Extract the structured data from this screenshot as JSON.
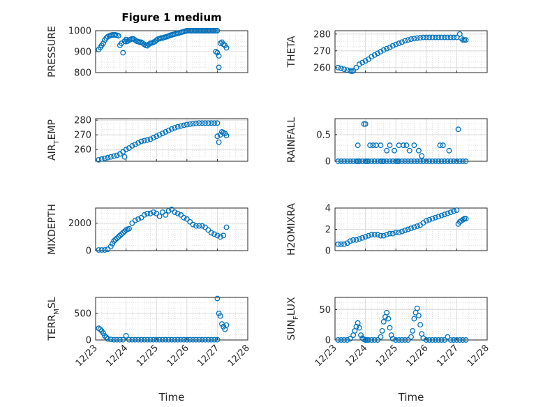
{
  "figure": {
    "title": "Figure 1 medium",
    "xlabel": "Time",
    "marker_color": "#0072BD",
    "grid": true,
    "x_ticks": [
      "12/23",
      "12/24",
      "12/25",
      "12/26",
      "12/27",
      "12/28"
    ]
  },
  "chart_data": [
    {
      "type": "scatter",
      "ylabel": "PRESSURE",
      "ylabel_parts": [
        "PRESSURE"
      ],
      "xlim": [
        "12/23",
        "12/28"
      ],
      "ylim": [
        800,
        1000
      ],
      "yticks": [
        800,
        900,
        1000
      ],
      "x": [
        0.1,
        0.15,
        0.2,
        0.25,
        0.3,
        0.35,
        0.4,
        0.45,
        0.5,
        0.55,
        0.6,
        0.65,
        0.7,
        0.75,
        0.8,
        0.85,
        0.9,
        0.95,
        1.0,
        1.0,
        1.05,
        1.1,
        1.15,
        1.2,
        1.25,
        1.3,
        1.35,
        1.4,
        1.45,
        1.5,
        1.55,
        1.6,
        1.65,
        1.7,
        1.75,
        1.8,
        1.85,
        1.9,
        1.95,
        2.0,
        2.05,
        2.1,
        2.15,
        2.2,
        2.25,
        2.3,
        2.35,
        2.4,
        2.45,
        2.5,
        2.55,
        2.6,
        2.65,
        2.7,
        2.75,
        2.8,
        2.85,
        2.9,
        2.95,
        3.0,
        3.05,
        3.1,
        3.15,
        3.2,
        3.25,
        3.3,
        3.35,
        3.4,
        3.45,
        3.5,
        3.55,
        3.6,
        3.65,
        3.7,
        3.75,
        3.8,
        3.85,
        3.9,
        3.95,
        4.0,
        3.95,
        4.0,
        4.05,
        4.05,
        4.1,
        4.15,
        4.2,
        4.25,
        4.3
      ],
      "y": [
        910,
        920,
        930,
        940,
        955,
        965,
        972,
        975,
        978,
        980,
        980,
        980,
        978,
        976,
        930,
        940,
        895,
        950,
        958,
        948,
        950,
        955,
        958,
        962,
        960,
        955,
        950,
        948,
        945,
        945,
        940,
        935,
        930,
        928,
        935,
        940,
        942,
        945,
        948,
        955,
        960,
        962,
        965,
        965,
        968,
        970,
        972,
        975,
        978,
        980,
        982,
        984,
        986,
        988,
        990,
        992,
        994,
        996,
        998,
        1000,
        1000,
        1000,
        1000,
        1000,
        1000,
        1000,
        1000,
        1000,
        1000,
        1000,
        1000,
        1000,
        1000,
        1000,
        1000,
        1000,
        1000,
        1000,
        1000,
        1000,
        900,
        895,
        880,
        825,
        940,
        945,
        935,
        930,
        918
      ]
    },
    {
      "type": "scatter",
      "ylabel": "THETA",
      "ylabel_parts": [
        "THETA"
      ],
      "xlim": [
        "12/23",
        "12/28"
      ],
      "ylim": [
        257,
        282
      ],
      "yticks": [
        260,
        270,
        280
      ],
      "x": [
        0.1,
        0.2,
        0.3,
        0.4,
        0.5,
        0.55,
        0.6,
        0.7,
        0.8,
        0.9,
        1.0,
        1.1,
        1.2,
        1.3,
        1.4,
        1.5,
        1.6,
        1.7,
        1.8,
        1.9,
        2.0,
        2.1,
        2.2,
        2.3,
        2.4,
        2.5,
        2.6,
        2.7,
        2.8,
        2.9,
        3.0,
        3.1,
        3.2,
        3.3,
        3.4,
        3.5,
        3.6,
        3.7,
        3.8,
        3.9,
        4.0,
        4.1,
        4.15,
        4.2,
        4.25,
        4.3
      ],
      "y": [
        260,
        259.5,
        259,
        258.5,
        258,
        257.8,
        258,
        260,
        262,
        263,
        264,
        265,
        266.5,
        267.5,
        268.5,
        269.5,
        270.5,
        271.3,
        272,
        273,
        273.8,
        274.5,
        275.2,
        276,
        276.5,
        277,
        277.3,
        277.6,
        277.8,
        278,
        278,
        278,
        278,
        278,
        278,
        278,
        278,
        278,
        278,
        278,
        278,
        280,
        277.5,
        276.5,
        276.5,
        276.5
      ]
    },
    {
      "type": "scatter",
      "ylabel": "AIR_TEMP",
      "ylabel_parts": [
        "AIR",
        "T",
        "EMP"
      ],
      "xlim": [
        "12/23",
        "12/28"
      ],
      "ylim": [
        252,
        281
      ],
      "yticks": [
        260,
        270,
        280
      ],
      "x": [
        0.1,
        0.2,
        0.3,
        0.4,
        0.5,
        0.6,
        0.7,
        0.8,
        0.9,
        0.95,
        1.0,
        1.1,
        1.2,
        1.3,
        1.4,
        1.5,
        1.6,
        1.7,
        1.8,
        1.9,
        2.0,
        2.1,
        2.2,
        2.3,
        2.4,
        2.5,
        2.6,
        2.7,
        2.8,
        2.9,
        3.0,
        3.1,
        3.2,
        3.3,
        3.4,
        3.5,
        3.6,
        3.7,
        3.8,
        3.9,
        4.0,
        4.0,
        4.05,
        4.1,
        4.15,
        4.2,
        4.25,
        4.3
      ],
      "y": [
        253,
        253.5,
        254,
        254.5,
        255,
        255.5,
        256,
        257,
        258.5,
        255,
        260,
        261,
        262.5,
        263.5,
        264.5,
        265.5,
        266,
        266.5,
        267,
        268,
        269,
        270,
        271,
        272,
        273,
        274,
        274.8,
        275.5,
        276,
        276.5,
        277,
        277.3,
        277.6,
        277.8,
        278,
        278,
        278,
        278,
        278,
        278,
        278,
        269,
        265,
        270,
        272,
        271.5,
        271,
        269.5
      ]
    },
    {
      "type": "scatter",
      "ylabel": "RAINFALL",
      "ylabel_parts": [
        "RAINFALL"
      ],
      "xlim": [
        "12/23",
        "12/28"
      ],
      "ylim": [
        0,
        0.8
      ],
      "yticks": [
        0,
        0.5
      ],
      "x": [
        0.1,
        0.2,
        0.3,
        0.4,
        0.5,
        0.6,
        0.7,
        0.75,
        0.8,
        0.9,
        1.0,
        1.05,
        1.1,
        1.2,
        1.3,
        1.4,
        1.5,
        1.55,
        1.6,
        1.7,
        1.8,
        1.9,
        2.0,
        2.05,
        2.1,
        2.2,
        2.3,
        2.4,
        2.5,
        2.6,
        2.7,
        2.8,
        2.9,
        3.0,
        3.1,
        3.2,
        3.3,
        3.4,
        3.5,
        3.6,
        3.7,
        3.8,
        3.9,
        4.0,
        4.1,
        4.2,
        4.3,
        0.75,
        0.95,
        1.0,
        1.15,
        1.25,
        1.35,
        1.5,
        1.7,
        1.8,
        1.95,
        2.1,
        2.25,
        2.35,
        2.45,
        2.6,
        2.75,
        2.85,
        3.45,
        3.55,
        3.75,
        4.05
      ],
      "y": [
        0,
        0,
        0,
        0,
        0,
        0,
        0,
        0,
        0,
        0,
        0,
        0,
        0,
        0,
        0,
        0,
        0,
        0,
        0,
        0,
        0,
        0,
        0,
        0,
        0,
        0,
        0,
        0,
        0,
        0,
        0,
        0,
        0,
        0,
        0,
        0,
        0,
        0,
        0,
        0,
        0,
        0,
        0,
        0,
        0,
        0,
        0,
        0.3,
        0.7,
        0.7,
        0.3,
        0.3,
        0.3,
        0.3,
        0.2,
        0.3,
        0.2,
        0.3,
        0.3,
        0.3,
        0.2,
        0.3,
        0.2,
        0.1,
        0.3,
        0.3,
        0.2,
        0.6
      ]
    },
    {
      "type": "scatter",
      "ylabel": "MIXDEPTH",
      "ylabel_parts": [
        "MIXDEPTH"
      ],
      "xlim": [
        "12/23",
        "12/28"
      ],
      "ylim": [
        0,
        3100
      ],
      "yticks": [
        0,
        2000
      ],
      "x": [
        0.1,
        0.2,
        0.3,
        0.4,
        0.5,
        0.55,
        0.6,
        0.65,
        0.7,
        0.75,
        0.8,
        0.85,
        0.9,
        0.95,
        1.0,
        1.05,
        1.1,
        1.2,
        1.3,
        1.4,
        1.5,
        1.6,
        1.7,
        1.8,
        1.9,
        2.0,
        2.1,
        2.2,
        2.3,
        2.4,
        2.5,
        2.6,
        2.7,
        2.8,
        2.9,
        3.0,
        3.1,
        3.2,
        3.3,
        3.4,
        3.5,
        3.6,
        3.7,
        3.8,
        3.9,
        4.0,
        4.1,
        4.2,
        4.3
      ],
      "y": [
        50,
        50,
        50,
        100,
        300,
        500,
        700,
        800,
        900,
        1000,
        1100,
        1200,
        1300,
        1400,
        1500,
        1550,
        1600,
        2000,
        2200,
        2300,
        2400,
        2600,
        2700,
        2700,
        2800,
        2700,
        2500,
        2800,
        2600,
        2900,
        3000,
        2800,
        2700,
        2600,
        2400,
        2300,
        2100,
        1900,
        1800,
        1800,
        1800,
        1700,
        1500,
        1300,
        1200,
        1100,
        1000,
        1100,
        1700
      ]
    },
    {
      "type": "scatter",
      "ylabel": "H2OMIXRA",
      "ylabel_parts": [
        "H2OMIXRA"
      ],
      "xlim": [
        "12/23",
        "12/28"
      ],
      "ylim": [
        0,
        4
      ],
      "yticks": [
        0,
        2,
        4
      ],
      "x": [
        0.1,
        0.2,
        0.3,
        0.4,
        0.5,
        0.6,
        0.7,
        0.8,
        0.9,
        1.0,
        1.1,
        1.2,
        1.3,
        1.4,
        1.5,
        1.6,
        1.7,
        1.8,
        1.9,
        2.0,
        2.1,
        2.2,
        2.3,
        2.4,
        2.5,
        2.6,
        2.7,
        2.8,
        2.9,
        3.0,
        3.1,
        3.2,
        3.3,
        3.4,
        3.5,
        3.6,
        3.7,
        3.8,
        3.9,
        4.0,
        4.05,
        4.1,
        4.15,
        4.2,
        4.25,
        4.3
      ],
      "y": [
        0.6,
        0.6,
        0.6,
        0.7,
        0.9,
        1.0,
        1.0,
        1.1,
        1.2,
        1.3,
        1.4,
        1.5,
        1.5,
        1.5,
        1.4,
        1.4,
        1.5,
        1.6,
        1.6,
        1.7,
        1.7,
        1.8,
        1.9,
        2.0,
        2.1,
        2.2,
        2.3,
        2.4,
        2.6,
        2.8,
        2.9,
        3.0,
        3.1,
        3.2,
        3.3,
        3.4,
        3.5,
        3.6,
        3.7,
        3.8,
        2.5,
        2.7,
        2.8,
        2.9,
        3.0,
        3.0
      ]
    },
    {
      "type": "scatter",
      "ylabel": "TERR_MSL",
      "ylabel_parts": [
        "TERR",
        "M",
        "SL"
      ],
      "xlim": [
        "12/23",
        "12/28"
      ],
      "ylim": [
        0,
        800
      ],
      "yticks": [
        0,
        500
      ],
      "x": [
        0.1,
        0.15,
        0.2,
        0.25,
        0.3,
        0.35,
        0.4,
        0.5,
        0.6,
        0.7,
        0.8,
        0.9,
        1.0,
        1.1,
        1.2,
        1.3,
        1.4,
        1.5,
        1.6,
        1.7,
        1.8,
        1.9,
        2.0,
        2.1,
        2.2,
        2.3,
        2.4,
        2.5,
        2.6,
        2.7,
        2.8,
        2.9,
        3.0,
        3.1,
        3.2,
        3.3,
        3.4,
        3.5,
        3.6,
        3.7,
        3.8,
        3.9,
        4.0,
        4.0,
        4.05,
        4.1,
        4.15,
        4.2,
        4.25,
        4.3
      ],
      "y": [
        220,
        200,
        170,
        130,
        80,
        50,
        20,
        10,
        5,
        5,
        5,
        5,
        80,
        5,
        5,
        5,
        5,
        5,
        5,
        5,
        5,
        5,
        5,
        5,
        5,
        5,
        5,
        5,
        5,
        5,
        5,
        5,
        5,
        5,
        5,
        5,
        5,
        5,
        5,
        5,
        5,
        5,
        5,
        780,
        500,
        450,
        300,
        250,
        200,
        280
      ]
    },
    {
      "type": "scatter",
      "ylabel": "SUN_FLUX",
      "ylabel_parts": [
        "SUN",
        "F",
        "LUX"
      ],
      "xlim": [
        "12/23",
        "12/28"
      ],
      "ylim": [
        0,
        70
      ],
      "yticks": [
        0,
        50
      ],
      "x": [
        0.1,
        0.2,
        0.3,
        0.4,
        0.5,
        0.6,
        0.65,
        0.7,
        0.75,
        0.8,
        0.85,
        0.9,
        0.95,
        1.0,
        1.05,
        1.1,
        1.2,
        1.3,
        1.4,
        1.5,
        1.55,
        1.6,
        1.65,
        1.7,
        1.75,
        1.8,
        1.85,
        1.9,
        2.0,
        2.1,
        2.2,
        2.3,
        2.4,
        2.5,
        2.55,
        2.6,
        2.65,
        2.7,
        2.75,
        2.8,
        2.85,
        2.9,
        3.0,
        3.1,
        3.2,
        3.3,
        3.4,
        3.5,
        3.6,
        3.7,
        3.8,
        3.9,
        4.0,
        4.1,
        4.2,
        4.3
      ],
      "y": [
        0,
        0,
        0,
        0,
        2,
        8,
        15,
        22,
        28,
        20,
        8,
        3,
        1,
        0,
        0,
        0,
        0,
        0,
        0,
        5,
        15,
        30,
        38,
        45,
        35,
        20,
        8,
        2,
        0,
        0,
        0,
        0,
        0,
        5,
        15,
        35,
        45,
        52,
        40,
        25,
        10,
        3,
        0,
        0,
        0,
        0,
        0,
        0,
        0,
        5,
        0,
        0,
        0,
        0,
        0,
        0
      ]
    }
  ]
}
